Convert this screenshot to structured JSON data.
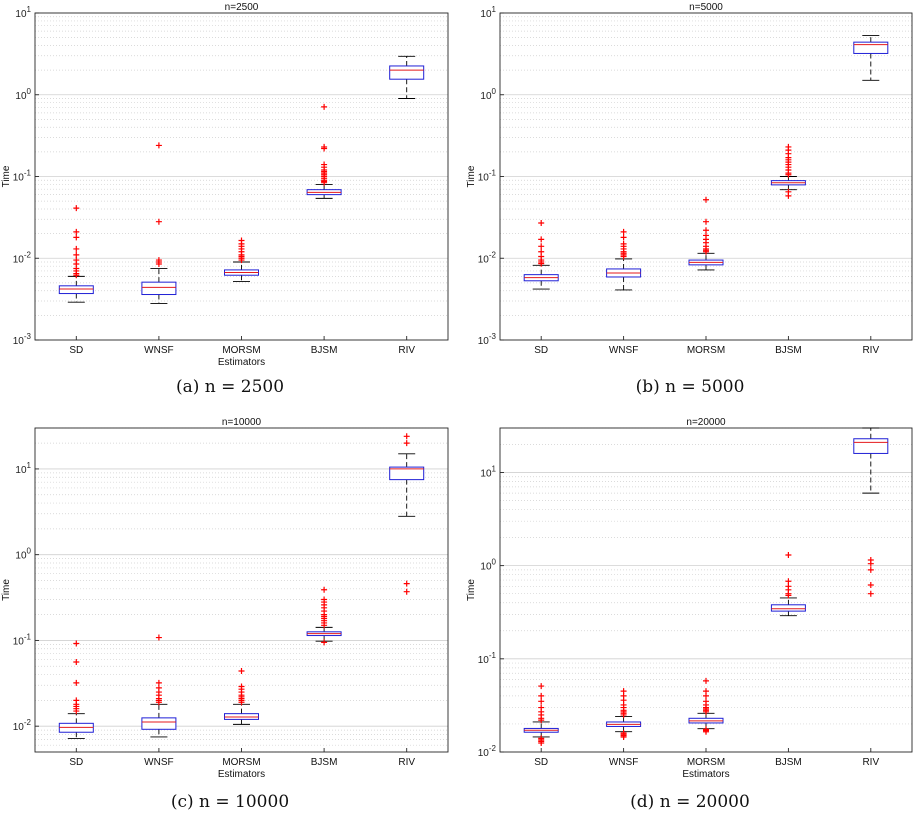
{
  "chart_data": [
    {
      "type": "box",
      "title": "n=2500",
      "caption": "(a) n = 2500",
      "xlabel": "Estimators",
      "ylabel": "Time",
      "yscale": "log",
      "ylim": [
        0.001,
        10
      ],
      "ytick_labels": [
        "10-3",
        "10-2",
        "10-1",
        "100",
        "101"
      ],
      "categories": [
        "SD",
        "WNSF",
        "MORSM",
        "BJSM",
        "RIV"
      ],
      "boxes": [
        {
          "min": 0.0029,
          "q1": 0.0037,
          "median": 0.0042,
          "q3": 0.0046,
          "max": 0.006,
          "outliers": [
            0.041,
            0.021,
            0.018,
            0.013,
            0.011,
            0.0095,
            0.0085,
            0.0075,
            0.007,
            0.0065,
            0.0062
          ]
        },
        {
          "min": 0.0028,
          "q1": 0.0036,
          "median": 0.0044,
          "q3": 0.0051,
          "max": 0.0075,
          "outliers": [
            0.24,
            0.028,
            0.0095,
            0.009,
            0.0085
          ]
        },
        {
          "min": 0.0052,
          "q1": 0.0062,
          "median": 0.0067,
          "q3": 0.0072,
          "max": 0.009,
          "outliers": [
            0.0165,
            0.015,
            0.014,
            0.013,
            0.012,
            0.011,
            0.0105,
            0.01,
            0.0095
          ]
        },
        {
          "min": 0.054,
          "q1": 0.06,
          "median": 0.064,
          "q3": 0.069,
          "max": 0.08,
          "outliers": [
            0.71,
            0.23,
            0.22,
            0.14,
            0.13,
            0.12,
            0.115,
            0.11,
            0.105,
            0.1,
            0.095,
            0.09,
            0.087,
            0.084
          ]
        },
        {
          "min": 0.9,
          "q1": 1.55,
          "median": 2.0,
          "q3": 2.25,
          "max": 2.95,
          "outliers": []
        }
      ]
    },
    {
      "type": "box",
      "title": "n=5000",
      "caption": "(b) n = 5000",
      "xlabel": "",
      "ylabel": "Time",
      "yscale": "log",
      "ylim": [
        0.001,
        10
      ],
      "ytick_labels": [
        "10-3",
        "10-2",
        "10-1",
        "100",
        "101"
      ],
      "categories": [
        "SD",
        "WNSF",
        "MORSM",
        "BJSM",
        "RIV"
      ],
      "boxes": [
        {
          "min": 0.0042,
          "q1": 0.0053,
          "median": 0.0058,
          "q3": 0.0063,
          "max": 0.0082,
          "outliers": [
            0.027,
            0.017,
            0.014,
            0.012,
            0.0105,
            0.0095,
            0.009,
            0.0086
          ]
        },
        {
          "min": 0.0041,
          "q1": 0.0059,
          "median": 0.0066,
          "q3": 0.0074,
          "max": 0.0098,
          "outliers": [
            0.021,
            0.018,
            0.015,
            0.014,
            0.013,
            0.012,
            0.0115,
            0.011,
            0.0105
          ]
        },
        {
          "min": 0.0072,
          "q1": 0.0083,
          "median": 0.0089,
          "q3": 0.0095,
          "max": 0.0115,
          "outliers": [
            0.052,
            0.028,
            0.022,
            0.019,
            0.017,
            0.0155,
            0.014,
            0.013,
            0.0125,
            0.012
          ]
        },
        {
          "min": 0.069,
          "q1": 0.079,
          "median": 0.084,
          "q3": 0.089,
          "max": 0.1,
          "outliers": [
            0.23,
            0.21,
            0.19,
            0.17,
            0.16,
            0.15,
            0.14,
            0.13,
            0.12,
            0.11,
            0.105,
            0.065,
            0.058
          ]
        },
        {
          "min": 1.5,
          "q1": 3.2,
          "median": 4.1,
          "q3": 4.4,
          "max": 5.3,
          "outliers": []
        }
      ]
    },
    {
      "type": "box",
      "title": "n=10000",
      "caption": "(c) n = 10000",
      "xlabel": "Estimators",
      "ylabel": "Time",
      "yscale": "log",
      "ylim": [
        0.005,
        30
      ],
      "ytick_labels": [
        "10-2",
        "10-1",
        "100",
        "101"
      ],
      "categories": [
        "SD",
        "WNSF",
        "MORSM",
        "BJSM",
        "RIV"
      ],
      "boxes": [
        {
          "min": 0.0072,
          "q1": 0.0085,
          "median": 0.0097,
          "q3": 0.0108,
          "max": 0.014,
          "outliers": [
            0.092,
            0.056,
            0.032,
            0.02,
            0.018,
            0.017,
            0.016,
            0.015
          ]
        },
        {
          "min": 0.0075,
          "q1": 0.0092,
          "median": 0.0112,
          "q3": 0.0125,
          "max": 0.018,
          "outliers": [
            0.108,
            0.032,
            0.028,
            0.025,
            0.023,
            0.021,
            0.02,
            0.019
          ]
        },
        {
          "min": 0.0105,
          "q1": 0.012,
          "median": 0.0128,
          "q3": 0.014,
          "max": 0.018,
          "outliers": [
            0.044,
            0.029,
            0.027,
            0.025,
            0.023,
            0.022,
            0.021,
            0.02,
            0.019
          ]
        },
        {
          "min": 0.098,
          "q1": 0.114,
          "median": 0.12,
          "q3": 0.126,
          "max": 0.142,
          "outliers": [
            0.39,
            0.3,
            0.28,
            0.26,
            0.24,
            0.22,
            0.2,
            0.19,
            0.18,
            0.17,
            0.16,
            0.15,
            0.095
          ]
        },
        {
          "min": 2.8,
          "q1": 7.5,
          "median": 10.0,
          "q3": 10.5,
          "max": 15.0,
          "outliers": [
            24.0,
            20.0,
            0.46,
            0.37
          ]
        }
      ]
    },
    {
      "type": "box",
      "title": "n=20000",
      "caption": "(d) n = 20000",
      "xlabel": "Estimators",
      "ylabel": "Time",
      "yscale": "log",
      "ylim": [
        0.01,
        30
      ],
      "ytick_labels": [
        "10-2",
        "10-1",
        "100",
        "101"
      ],
      "categories": [
        "SD",
        "WNSF",
        "MORSM",
        "BJSM",
        "RIV"
      ],
      "boxes": [
        {
          "min": 0.0145,
          "q1": 0.0163,
          "median": 0.0171,
          "q3": 0.0179,
          "max": 0.021,
          "outliers": [
            0.051,
            0.04,
            0.035,
            0.03,
            0.027,
            0.025,
            0.023,
            0.022,
            0.014,
            0.0135,
            0.013,
            0.0125
          ]
        },
        {
          "min": 0.0165,
          "q1": 0.0188,
          "median": 0.0198,
          "q3": 0.021,
          "max": 0.024,
          "outliers": [
            0.045,
            0.04,
            0.036,
            0.032,
            0.03,
            0.028,
            0.027,
            0.026,
            0.025,
            0.016,
            0.0155,
            0.015,
            0.0145
          ]
        },
        {
          "min": 0.0178,
          "q1": 0.0205,
          "median": 0.0216,
          "q3": 0.023,
          "max": 0.026,
          "outliers": [
            0.058,
            0.045,
            0.04,
            0.035,
            0.032,
            0.03,
            0.029,
            0.028,
            0.027,
            0.0175,
            0.017,
            0.0165
          ]
        },
        {
          "min": 0.29,
          "q1": 0.325,
          "median": 0.345,
          "q3": 0.38,
          "max": 0.45,
          "outliers": [
            1.3,
            0.68,
            0.6,
            0.55,
            0.5,
            0.48
          ]
        },
        {
          "min": 6.0,
          "q1": 16.0,
          "median": 21.0,
          "q3": 23.0,
          "max": 30.0,
          "outliers": [
            1.15,
            1.05,
            0.9,
            0.62,
            0.5
          ]
        }
      ]
    }
  ]
}
